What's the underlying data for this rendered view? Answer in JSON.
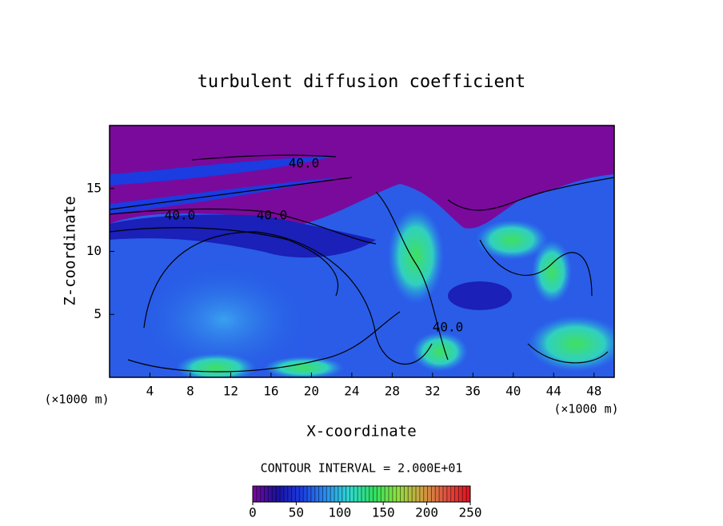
{
  "chart_data": {
    "type": "contour",
    "title": "turbulent diffusion coefficient",
    "xlabel": "X-coordinate",
    "ylabel": "Z-coordinate",
    "x_unit_left": "(×1000 m)",
    "x_unit_right": "(×1000 m)",
    "xlim": [
      0,
      50
    ],
    "xticks": [
      4,
      8,
      12,
      16,
      20,
      24,
      28,
      32,
      36,
      40,
      44,
      48
    ],
    "ylim": [
      0,
      20
    ],
    "yticks": [
      5,
      10,
      15
    ],
    "contour_labels": [
      "40.0",
      "40.0",
      "40.0",
      "40.0"
    ],
    "contour_interval_label": "CONTOUR INTERVAL = 2.000E+01",
    "clim": [
      0,
      250
    ],
    "cticks": [
      0,
      50,
      100,
      150,
      200,
      250
    ],
    "colormap": [
      "#7a0a9c",
      "#1a10a0",
      "#1a3ce0",
      "#2a8cf0",
      "#30d8d0",
      "#30e060",
      "#90e040",
      "#d0a040",
      "#e05040",
      "#e01020"
    ]
  }
}
